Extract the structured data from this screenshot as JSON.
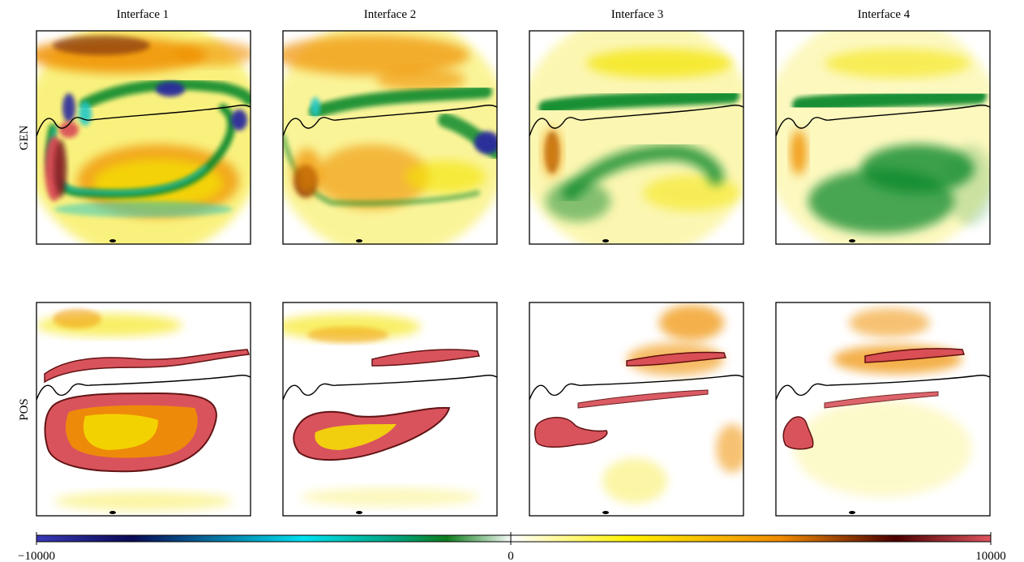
{
  "chart_data": {
    "type": "heatmap",
    "columns": [
      "Interface 1",
      "Interface 2",
      "Interface 3",
      "Interface 4"
    ],
    "rows": [
      "GEN",
      "POS"
    ],
    "colorbar": {
      "range": [
        -10000,
        10000
      ],
      "ticks": [
        -10000,
        0,
        10000
      ],
      "tick_labels": [
        "−10000",
        "0",
        "10000"
      ],
      "colors": [
        "#2a2a9e",
        "#0a0a55",
        "#00d8e8",
        "#009a6a",
        "#0e7d1e",
        "#ffffff",
        "#fff200",
        "#f08a00",
        "#4a0000",
        "#e05560"
      ]
    },
    "colors": {
      "blue": "#2a2a9e",
      "cyan": "#20c8c8",
      "green": "#0e8a2e",
      "white": "#ffffff",
      "yellow": "#f4e400",
      "orange": "#f09000",
      "dark_red": "#5a0808",
      "pink_red": "#d84a55"
    },
    "panels": [
      {
        "row": "GEN",
        "column": "Interface 1",
        "dominant": "mixed positive/negative, strong extremes"
      },
      {
        "row": "GEN",
        "column": "Interface 2",
        "dominant": "mixed, moderate"
      },
      {
        "row": "GEN",
        "column": "Interface 3",
        "dominant": "mostly weak, green negative bands"
      },
      {
        "row": "GEN",
        "column": "Interface 4",
        "dominant": "smooth, green negative region"
      },
      {
        "row": "POS",
        "column": "Interface 1",
        "dominant": "saturated positive loop"
      },
      {
        "row": "POS",
        "column": "Interface 2",
        "dominant": "saturated positive loop"
      },
      {
        "row": "POS",
        "column": "Interface 3",
        "dominant": "positive streaks"
      },
      {
        "row": "POS",
        "column": "Interface 4",
        "dominant": "positive streaks, smooth"
      }
    ]
  }
}
